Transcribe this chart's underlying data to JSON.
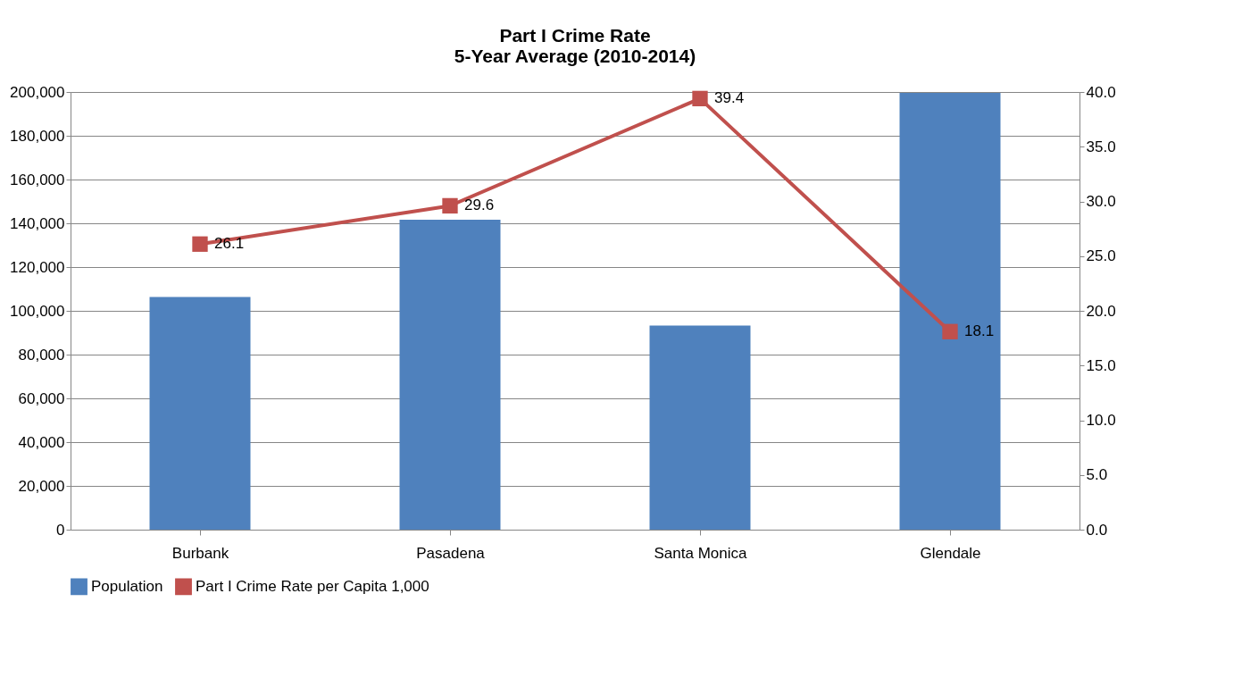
{
  "chart_data": {
    "type": "bar",
    "title": "Part I Crime Rate\n5-Year Average (2010-2014)",
    "categories": [
      "Burbank",
      "Pasadena",
      "Santa Monica",
      "Glendale"
    ],
    "series": [
      {
        "name": "Population",
        "color": "#4f81bd",
        "values": [
          106300,
          141600,
          93300,
          199600
        ]
      },
      {
        "name": "Part I Crime Rate per Capita 1,000",
        "type": "line",
        "axis": "y2",
        "color": "#c0504d",
        "values": [
          26.1,
          29.6,
          39.4,
          18.1
        ],
        "value_labels": [
          "26.1",
          "29.6",
          "39.4",
          "18.1"
        ],
        "marker": "square"
      }
    ],
    "ylim": [
      0,
      200000
    ],
    "yticks": [
      0,
      {
        "value": 20000,
        "label": "20,000"
      },
      {
        "value": 40000,
        "label": "40,000"
      },
      {
        "value": 60000,
        "label": "60,000"
      },
      {
        "value": 80000,
        "label": "80,000"
      },
      {
        "value": 100000,
        "label": "100,000"
      },
      {
        "value": 120000,
        "label": "120,000"
      },
      {
        "value": 140000,
        "label": "140,000"
      },
      {
        "value": 160000,
        "label": "160,000"
      },
      {
        "value": 180000,
        "label": "180,000"
      },
      {
        "value": 200000,
        "label": "200,000"
      }
    ],
    "y2lim": [
      0,
      40
    ],
    "y2ticks": [
      {
        "value": 0,
        "label": "0.0"
      },
      {
        "value": 5,
        "label": "5.0"
      },
      {
        "value": 10,
        "label": "10.0"
      },
      {
        "value": 15,
        "label": "15.0"
      },
      {
        "value": 20,
        "label": "20.0"
      },
      {
        "value": 25,
        "label": "25.0"
      },
      {
        "value": 30,
        "label": "30.0"
      },
      {
        "value": 35,
        "label": "35.0"
      },
      {
        "value": 40,
        "label": "40.0"
      }
    ],
    "grid": "y",
    "legend": "bottom",
    "line_style": "solid"
  }
}
